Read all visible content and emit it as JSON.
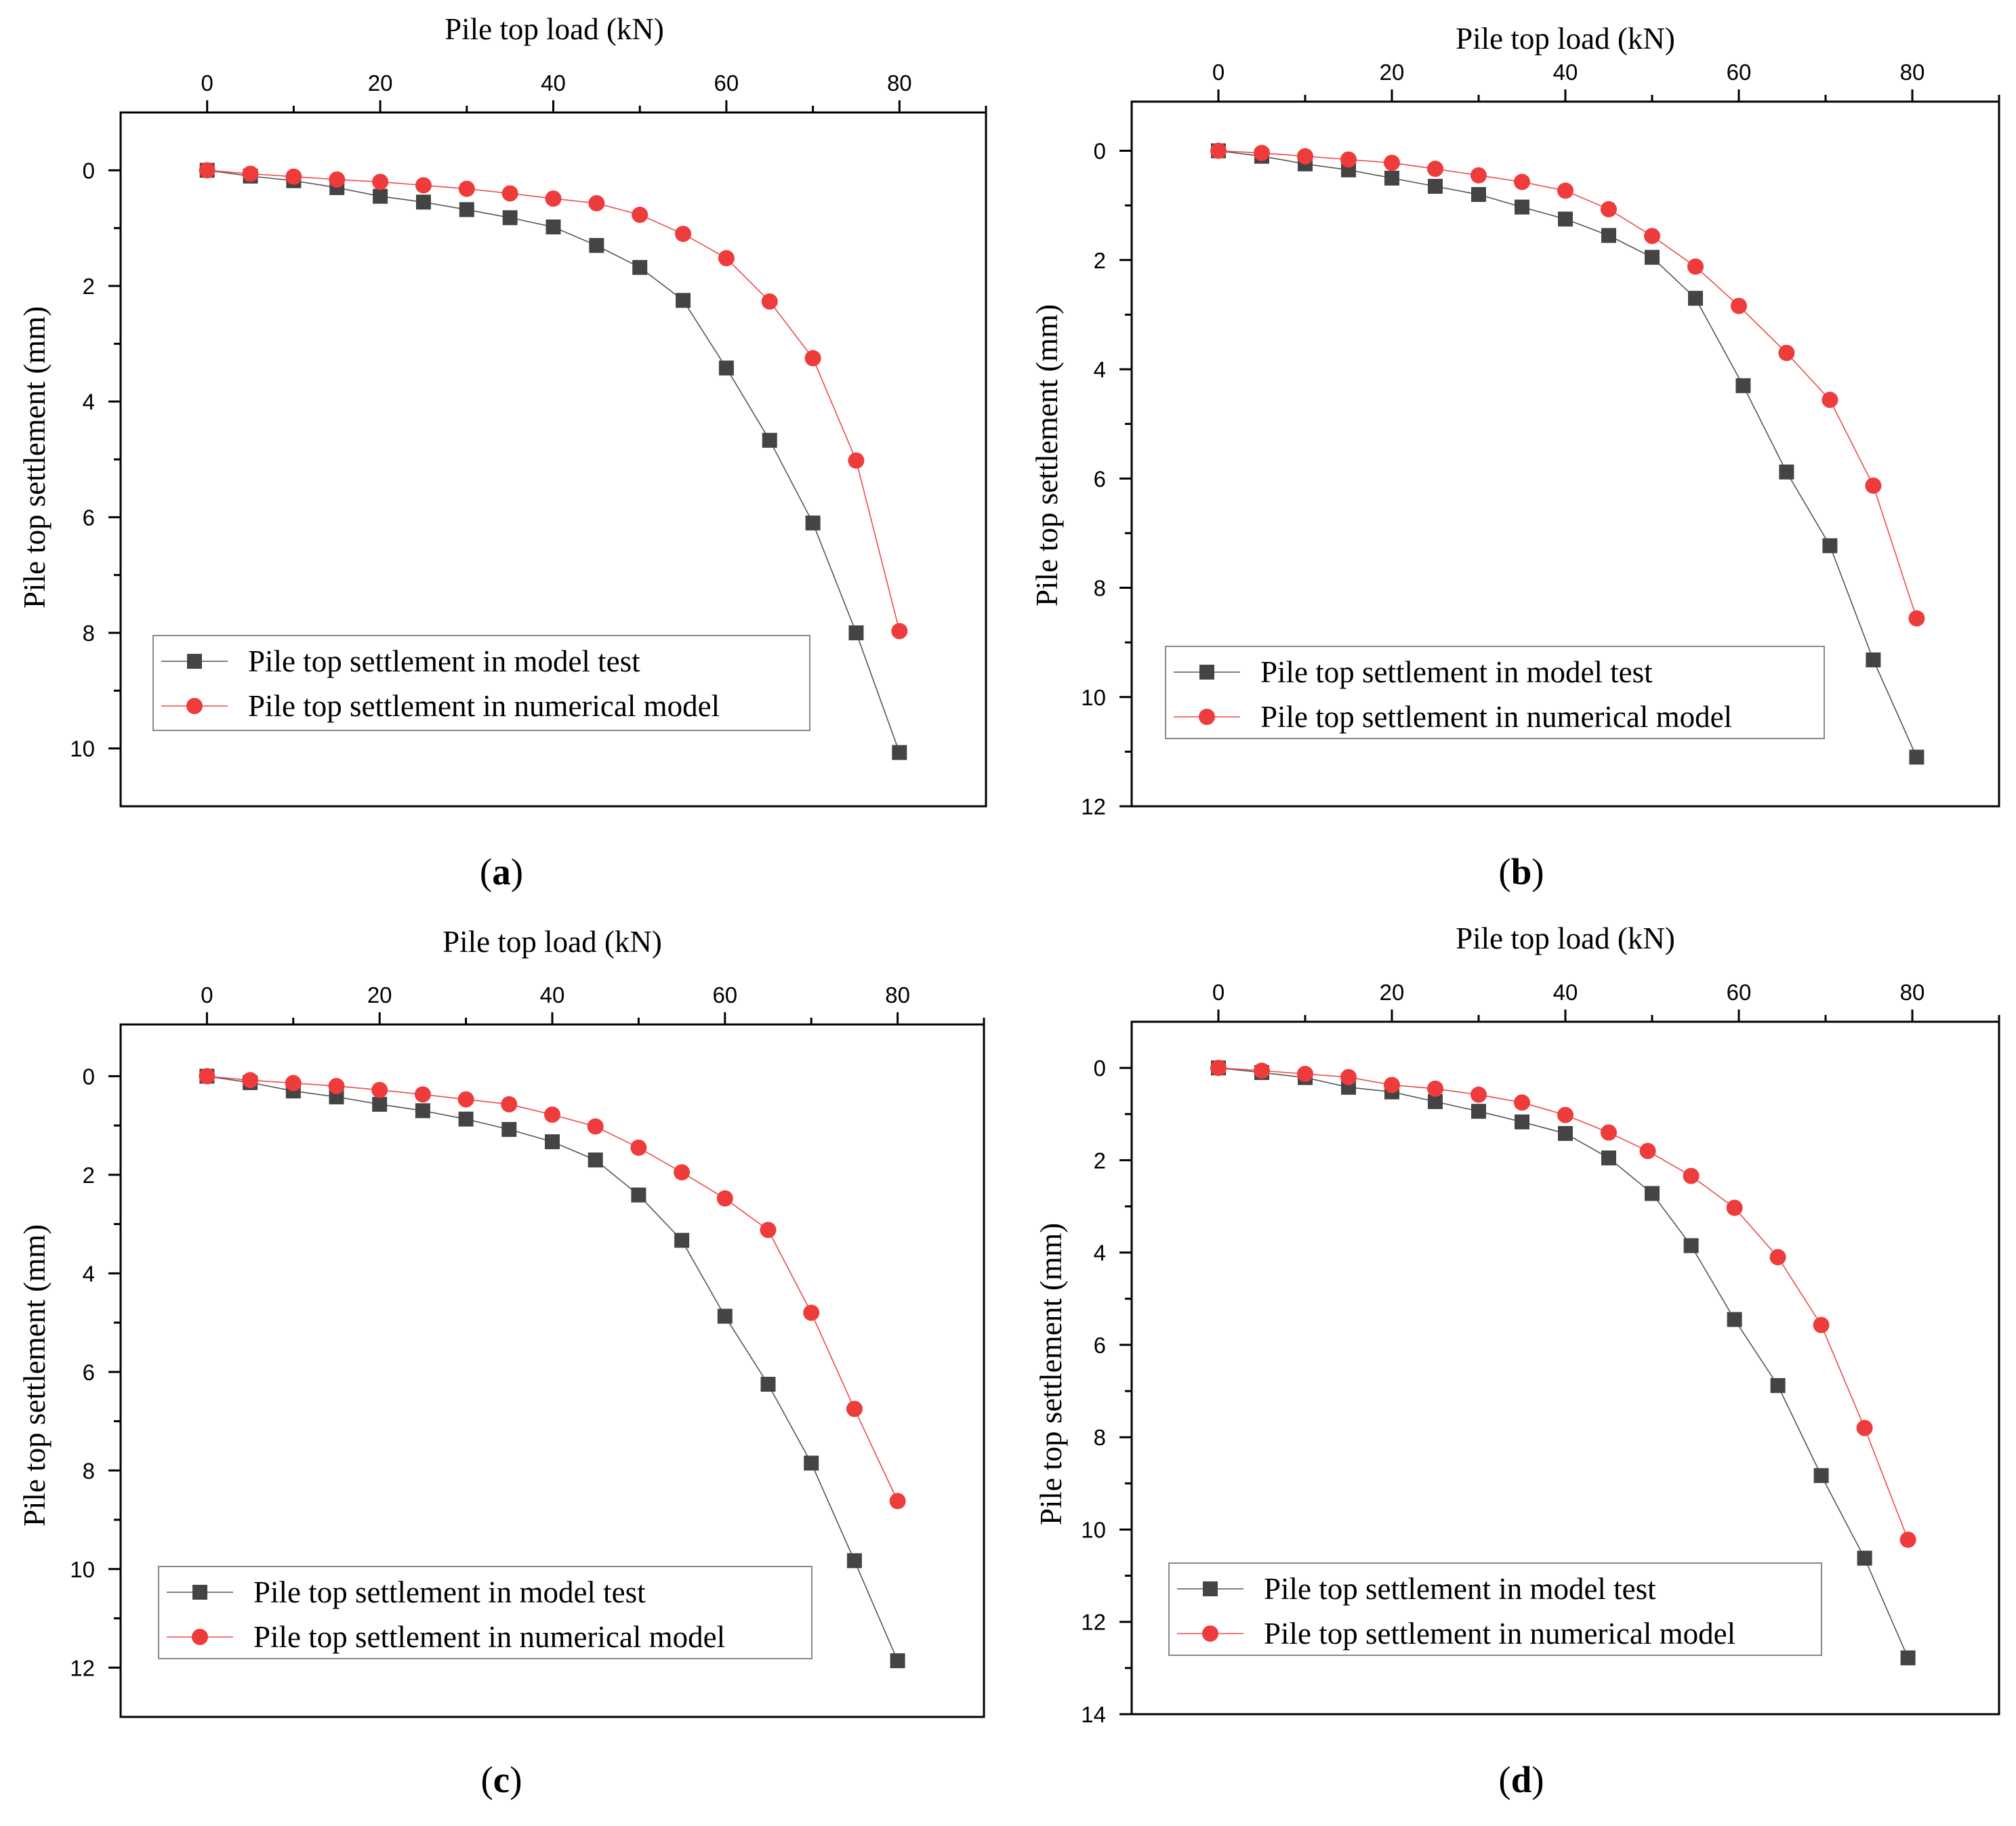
{
  "colors": {
    "test_marker": "#444444",
    "test_line": "#555555",
    "numerical_marker": "#ee3b3b",
    "numerical_line": "#ee4a4a"
  },
  "chart_data": [
    {
      "type": "scatter",
      "panel_label": "a",
      "xlabel": "Pile top load (kN)",
      "ylabel": "Pile top settlement (mm)",
      "xlim": [
        -10,
        90
      ],
      "ylim": [
        -1,
        11
      ],
      "y_inverted": true,
      "x_axis_position": "top",
      "xticks": [
        "0",
        "20",
        "40",
        "60",
        "80"
      ],
      "yticks": [
        "0",
        "2",
        "4",
        "6",
        "8",
        "10"
      ],
      "legend_position": "lower-left",
      "series": [
        {
          "name": "Pile top settlement in model test",
          "marker": "square",
          "x": [
            0,
            5,
            10,
            15,
            20,
            25,
            30,
            35,
            40,
            45,
            50,
            55,
            60,
            65,
            70,
            75,
            80
          ],
          "y": [
            0,
            0.1,
            0.18,
            0.3,
            0.45,
            0.55,
            0.68,
            0.82,
            0.98,
            1.3,
            1.68,
            2.25,
            3.42,
            4.67,
            6.1,
            8.0,
            10.07
          ]
        },
        {
          "name": "Pile top settlement in numerical model",
          "marker": "circle",
          "x": [
            0,
            5,
            10,
            15,
            20,
            25,
            30,
            35,
            40,
            45,
            50,
            55,
            60,
            65,
            70,
            75,
            80
          ],
          "y": [
            0,
            0.06,
            0.11,
            0.16,
            0.2,
            0.26,
            0.32,
            0.4,
            0.49,
            0.57,
            0.77,
            1.1,
            1.52,
            2.27,
            3.25,
            5.02,
            7.97
          ]
        }
      ]
    },
    {
      "type": "scatter",
      "panel_label": "b",
      "xlabel": "Pile top load (kN)",
      "ylabel": "Pile top settlement (mm)",
      "xlim": [
        -10,
        90
      ],
      "ylim": [
        -0.9,
        12
      ],
      "y_inverted": true,
      "x_axis_position": "top",
      "xticks": [
        "0",
        "20",
        "40",
        "60",
        "80"
      ],
      "yticks": [
        "0",
        "2",
        "4",
        "6",
        "8",
        "10",
        "12"
      ],
      "legend_position": "lower-left",
      "series": [
        {
          "name": "Pile top settlement in model test",
          "marker": "square",
          "x": [
            0,
            5,
            10,
            15,
            20,
            25,
            30,
            35,
            40,
            45,
            50,
            55,
            60.5,
            65.5,
            70.5,
            75.5,
            80.5
          ],
          "y": [
            0,
            0.1,
            0.24,
            0.35,
            0.5,
            0.65,
            0.8,
            1.03,
            1.25,
            1.55,
            1.95,
            2.7,
            4.3,
            5.88,
            7.23,
            9.32,
            11.1
          ]
        },
        {
          "name": "Pile top settlement in numerical model",
          "marker": "circle",
          "x": [
            0,
            5,
            10,
            15,
            20,
            25,
            30,
            35,
            40,
            45,
            50,
            55,
            60,
            65.5,
            70.5,
            75.5,
            80.5
          ],
          "y": [
            0,
            0.04,
            0.1,
            0.16,
            0.22,
            0.33,
            0.45,
            0.57,
            0.73,
            1.07,
            1.56,
            2.12,
            2.84,
            3.7,
            4.56,
            6.13,
            8.56
          ]
        }
      ]
    },
    {
      "type": "scatter",
      "panel_label": "c",
      "xlabel": "Pile top load (kN)",
      "ylabel": "Pile top settlement (mm)",
      "xlim": [
        -10,
        90
      ],
      "ylim": [
        -1.05,
        13
      ],
      "y_inverted": true,
      "x_axis_position": "top",
      "xticks": [
        "0",
        "20",
        "40",
        "60",
        "80"
      ],
      "yticks": [
        "0",
        "2",
        "4",
        "6",
        "8",
        "10",
        "12"
      ],
      "legend_position": "lower-left",
      "series": [
        {
          "name": "Pile top settlement in model test",
          "marker": "square",
          "x": [
            0,
            5,
            10,
            15,
            20,
            25,
            30,
            35,
            40,
            45,
            50,
            55,
            60,
            65,
            70,
            75,
            80
          ],
          "y": [
            0,
            0.13,
            0.3,
            0.42,
            0.57,
            0.7,
            0.87,
            1.08,
            1.33,
            1.7,
            2.41,
            3.33,
            4.87,
            6.25,
            7.85,
            9.83,
            11.86
          ]
        },
        {
          "name": "Pile top settlement in numerical model",
          "marker": "circle",
          "x": [
            0,
            5,
            10,
            15,
            20,
            25,
            30,
            35,
            40,
            45,
            50,
            55,
            60,
            65,
            70,
            75,
            80
          ],
          "y": [
            0,
            0.08,
            0.14,
            0.2,
            0.28,
            0.37,
            0.47,
            0.57,
            0.78,
            1.02,
            1.45,
            1.95,
            2.48,
            3.12,
            4.8,
            6.75,
            8.62
          ]
        }
      ]
    },
    {
      "type": "scatter",
      "panel_label": "d",
      "xlabel": "Pile top load (kN)",
      "ylabel": "Pile top settlement (mm)",
      "xlim": [
        -10,
        90
      ],
      "ylim": [
        -1,
        14
      ],
      "y_inverted": true,
      "x_axis_position": "top",
      "xticks": [
        "0",
        "20",
        "40",
        "60",
        "80"
      ],
      "yticks": [
        "0",
        "2",
        "4",
        "6",
        "8",
        "10",
        "12",
        "14"
      ],
      "legend_position": "lower-left",
      "series": [
        {
          "name": "Pile top settlement in model test",
          "marker": "square",
          "x": [
            0,
            5,
            10,
            15,
            20,
            25,
            30,
            35,
            40,
            45,
            50,
            54.5,
            59.5,
            64.5,
            69.5,
            74.5,
            79.5
          ],
          "y": [
            0,
            0.1,
            0.21,
            0.42,
            0.52,
            0.73,
            0.94,
            1.17,
            1.42,
            1.95,
            2.72,
            3.85,
            5.45,
            6.88,
            8.83,
            10.62,
            12.78
          ]
        },
        {
          "name": "Pile top settlement in numerical model",
          "marker": "circle",
          "x": [
            0,
            5,
            10,
            15,
            20,
            25,
            30,
            35,
            40,
            45,
            49.5,
            54.5,
            59.5,
            64.5,
            69.5,
            74.5,
            79.5
          ],
          "y": [
            0,
            0.06,
            0.13,
            0.2,
            0.37,
            0.45,
            0.58,
            0.75,
            1.02,
            1.4,
            1.8,
            2.34,
            3.03,
            4.1,
            5.57,
            7.8,
            10.22
          ]
        }
      ]
    }
  ]
}
